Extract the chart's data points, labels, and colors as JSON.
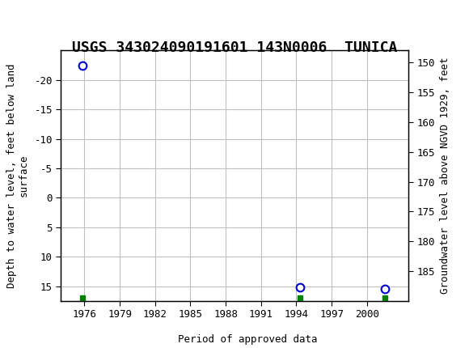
{
  "title": "USGS 343024090191601 143N0006  TUNICA",
  "ylabel_left": "Depth to water level, feet below land\nsurface",
  "ylabel_right": "Groundwater level above NGVD 1929, feet",
  "data_points": [
    {
      "x": 1975.8,
      "y_left": -22.5
    },
    {
      "x": 1994.3,
      "y_left": 15.2
    },
    {
      "x": 2001.5,
      "y_left": 15.5
    }
  ],
  "green_marks": [
    {
      "x": 1975.8
    },
    {
      "x": 1994.3
    },
    {
      "x": 2001.5
    }
  ],
  "xlim": [
    1974.0,
    2003.5
  ],
  "xticks": [
    1976,
    1979,
    1982,
    1985,
    1988,
    1991,
    1994,
    1997,
    2000
  ],
  "ylim_left_bottom": 17.5,
  "ylim_left_top": -25.0,
  "ylim_right_bottom": 190.0,
  "ylim_right_top": 148.0,
  "yticks_left": [
    -20,
    -15,
    -10,
    -5,
    0,
    5,
    10,
    15
  ],
  "yticks_right": [
    185,
    180,
    175,
    170,
    165,
    160,
    155,
    150
  ],
  "grid_color": "#c0c0c0",
  "plot_bg_color": "#ffffff",
  "outer_bg_color": "#ffffff",
  "header_bg_color": "#1a7a3e",
  "point_color": "#0000cc",
  "green_color": "#008000",
  "green_mark_y": 17.0,
  "legend_label": "Period of approved data",
  "title_fontsize": 13,
  "axis_label_fontsize": 9,
  "tick_fontsize": 9
}
